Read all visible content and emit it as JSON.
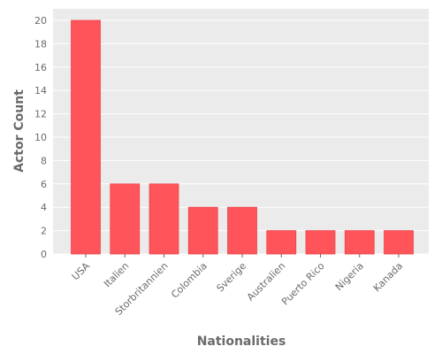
{
  "chart_data": {
    "type": "bar",
    "categories": [
      "USA",
      "Italien",
      "Storbritannien",
      "Colombia",
      "Sverige",
      "Australien",
      "Puerto Rico",
      "Nigeria",
      "Kanada"
    ],
    "values": [
      20,
      6,
      6,
      4,
      4,
      2,
      2,
      2,
      2
    ],
    "xlabel": "Nationalities",
    "ylabel": "Actor Count",
    "ylim": [
      0,
      21
    ],
    "yticks": [
      0,
      2,
      4,
      6,
      8,
      10,
      12,
      14,
      16,
      18,
      20
    ],
    "grid": true,
    "colors": {
      "bar": "#ff5459",
      "bar_edge": "#e8484d",
      "panel_bg": "#ebebeb",
      "grid": "#ffffff",
      "text": "#6a6a6a"
    }
  }
}
